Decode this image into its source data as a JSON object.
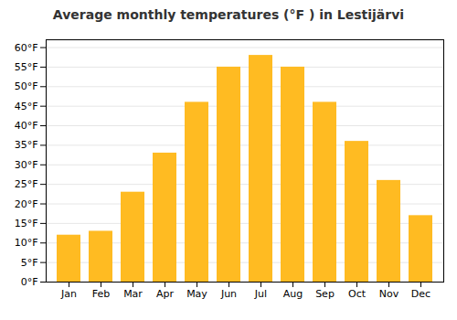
{
  "chart_data": {
    "type": "bar",
    "title": "Average monthly temperatures (°F ) in Lestijärvi",
    "categories": [
      "Jan",
      "Feb",
      "Mar",
      "Apr",
      "May",
      "Jun",
      "Jul",
      "Aug",
      "Sep",
      "Oct",
      "Nov",
      "Dec"
    ],
    "values": [
      12,
      13,
      23,
      33,
      46,
      55,
      58,
      55,
      46,
      36,
      26,
      17
    ],
    "color": "#FFBB22",
    "ylim": [
      0,
      62
    ],
    "yticks": [
      {
        "value": 0,
        "label": "0°F"
      },
      {
        "value": 5,
        "label": "5°F"
      },
      {
        "value": 10,
        "label": "10°F"
      },
      {
        "value": 15,
        "label": "15°F"
      },
      {
        "value": 20,
        "label": "20°F"
      },
      {
        "value": 25,
        "label": "25°F"
      },
      {
        "value": 30,
        "label": "30°F"
      },
      {
        "value": 35,
        "label": "35°F"
      },
      {
        "value": 40,
        "label": "40°F"
      },
      {
        "value": 45,
        "label": "45°F"
      },
      {
        "value": 50,
        "label": "50°F"
      },
      {
        "value": 55,
        "label": "55°F"
      },
      {
        "value": 60,
        "label": "60°F"
      }
    ],
    "grid": true
  }
}
